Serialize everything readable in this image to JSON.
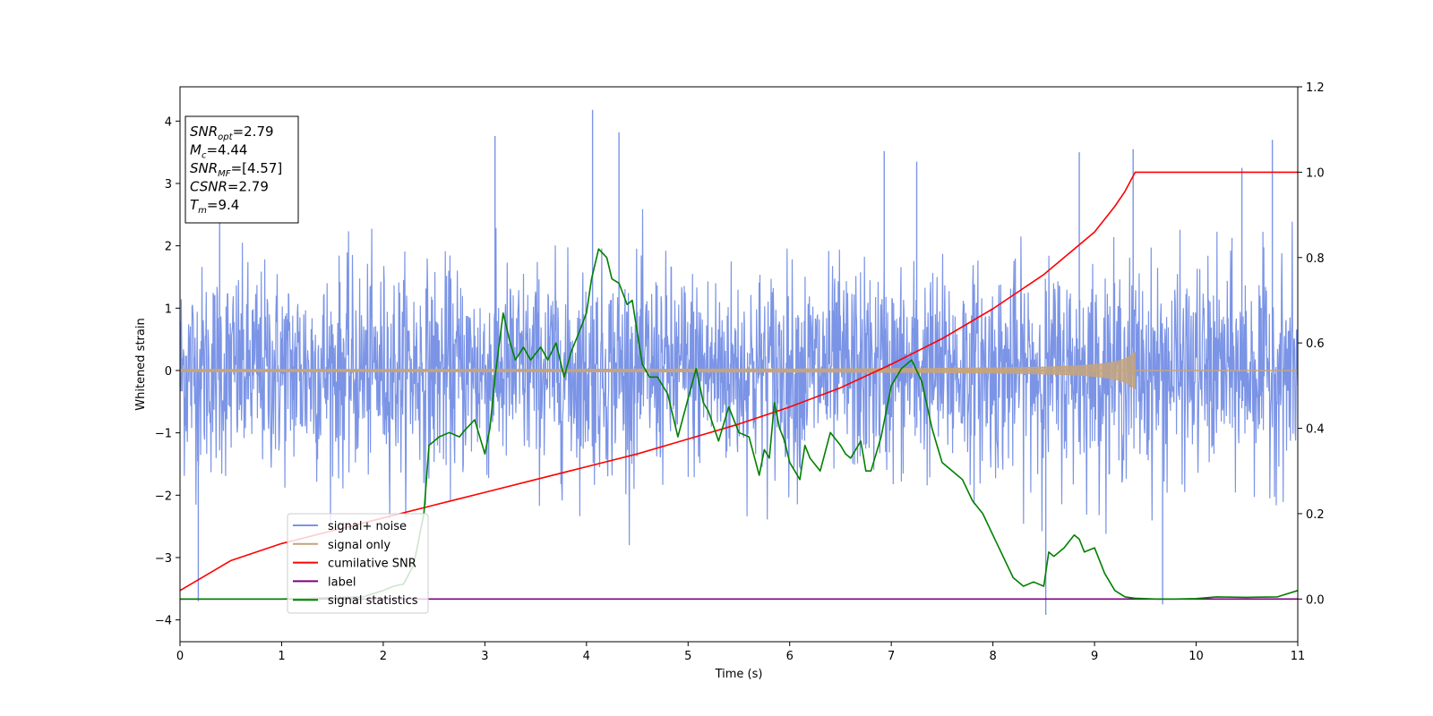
{
  "chart_data": {
    "type": "line",
    "xlabel": "Time (s)",
    "ylabel": "Whitened strain",
    "xlim": [
      0,
      11
    ],
    "ylim": [
      -4.35,
      4.55
    ],
    "y2lim": [
      -0.1,
      1.2
    ],
    "xticks": [
      0,
      1,
      2,
      3,
      4,
      5,
      6,
      7,
      8,
      9,
      10,
      11
    ],
    "yticks": [
      -4,
      -3,
      -2,
      -1,
      0,
      1,
      2,
      3,
      4
    ],
    "y2ticks": [
      "0.0",
      "0.2",
      "0.4",
      "0.6",
      "0.8",
      "1.0",
      "1.2"
    ],
    "grid": false,
    "legend_position": "lower-left",
    "info_box": {
      "lines": [
        {
          "main": "SNR",
          "sub": "opt",
          "value": "=2.79"
        },
        {
          "main": "M",
          "sub": "c",
          "value": "=4.44"
        },
        {
          "main": "SNR",
          "sub": "MF",
          "value": "=[4.57]"
        },
        {
          "main": "CSNR",
          "sub": "",
          "value": "=2.79"
        },
        {
          "main": "T",
          "sub": "m",
          "value": "=9.4"
        }
      ]
    },
    "series": [
      {
        "name": "signal+ noise",
        "color": "#7b94e6",
        "axis": "left",
        "style": "noise",
        "std": 1.0,
        "range": [
          0,
          11
        ],
        "peaks": [
          [
            0.18,
            -3.7
          ],
          [
            0.39,
            3.2
          ],
          [
            4.06,
            4.18
          ],
          [
            3.1,
            3.76
          ],
          [
            4.32,
            3.82
          ],
          [
            6.93,
            3.52
          ],
          [
            7.25,
            3.35
          ],
          [
            8.52,
            -3.92
          ],
          [
            9.67,
            -3.75
          ],
          [
            10.75,
            3.7
          ],
          [
            10.45,
            3.25
          ],
          [
            9.38,
            3.55
          ],
          [
            8.85,
            3.5
          ]
        ]
      },
      {
        "name": "signal only",
        "color": "#c4a47e",
        "axis": "left",
        "style": "chirp",
        "amplitude_end": 0.28,
        "t_merge": 9.4
      },
      {
        "name": "cumilative SNR",
        "color": "#ff0000",
        "axis": "right",
        "x": [
          0,
          0.5,
          1,
          1.5,
          2,
          2.5,
          3,
          3.5,
          4,
          4.5,
          5,
          5.5,
          6,
          6.5,
          7,
          7.5,
          8,
          8.5,
          9,
          9.2,
          9.3,
          9.4,
          9.5,
          10,
          10.5,
          11
        ],
        "values": [
          0.02,
          0.09,
          0.13,
          0.16,
          0.19,
          0.22,
          0.25,
          0.28,
          0.31,
          0.34,
          0.375,
          0.41,
          0.45,
          0.495,
          0.55,
          0.61,
          0.68,
          0.76,
          0.86,
          0.92,
          0.955,
          1.0,
          1.0,
          1.0,
          1.0,
          1.0
        ]
      },
      {
        "name": "label",
        "color": "#800080",
        "axis": "right",
        "x": [
          0,
          11
        ],
        "values": [
          0,
          0
        ]
      },
      {
        "name": "signal statistics",
        "color": "#008000",
        "axis": "right",
        "x": [
          0,
          1.0,
          1.8,
          2.0,
          2.1,
          2.2,
          2.3,
          2.4,
          2.45,
          2.55,
          2.65,
          2.75,
          2.8,
          2.9,
          3.0,
          3.05,
          3.1,
          3.18,
          3.25,
          3.3,
          3.38,
          3.45,
          3.55,
          3.62,
          3.7,
          3.78,
          3.85,
          3.92,
          4.0,
          4.05,
          4.12,
          4.2,
          4.25,
          4.32,
          4.4,
          4.45,
          4.55,
          4.62,
          4.7,
          4.8,
          4.9,
          5.0,
          5.08,
          5.15,
          5.2,
          5.3,
          5.4,
          5.5,
          5.6,
          5.7,
          5.75,
          5.8,
          5.85,
          5.9,
          5.95,
          6.0,
          6.05,
          6.1,
          6.15,
          6.2,
          6.3,
          6.4,
          6.5,
          6.55,
          6.6,
          6.7,
          6.75,
          6.8,
          6.9,
          7.0,
          7.1,
          7.2,
          7.3,
          7.4,
          7.45,
          7.5,
          7.6,
          7.65,
          7.7,
          7.8,
          7.9,
          8.0,
          8.2,
          8.3,
          8.4,
          8.5,
          8.55,
          8.6,
          8.7,
          8.8,
          8.85,
          8.9,
          9.0,
          9.05,
          9.1,
          9.2,
          9.3,
          9.4,
          9.6,
          9.8,
          10.0,
          10.2,
          10.5,
          10.8,
          11.0
        ],
        "values": [
          0,
          0.0,
          0.005,
          0.02,
          0.03,
          0.035,
          0.08,
          0.2,
          0.36,
          0.38,
          0.39,
          0.38,
          0.395,
          0.42,
          0.34,
          0.4,
          0.52,
          0.67,
          0.6,
          0.56,
          0.59,
          0.56,
          0.59,
          0.56,
          0.6,
          0.52,
          0.58,
          0.62,
          0.67,
          0.75,
          0.82,
          0.8,
          0.75,
          0.74,
          0.69,
          0.7,
          0.55,
          0.52,
          0.52,
          0.48,
          0.38,
          0.47,
          0.54,
          0.46,
          0.44,
          0.37,
          0.45,
          0.39,
          0.38,
          0.29,
          0.35,
          0.33,
          0.46,
          0.4,
          0.37,
          0.32,
          0.3,
          0.28,
          0.36,
          0.33,
          0.3,
          0.39,
          0.36,
          0.34,
          0.33,
          0.37,
          0.3,
          0.3,
          0.38,
          0.5,
          0.54,
          0.56,
          0.51,
          0.4,
          0.36,
          0.32,
          0.3,
          0.29,
          0.28,
          0.23,
          0.2,
          0.15,
          0.05,
          0.03,
          0.04,
          0.03,
          0.11,
          0.1,
          0.12,
          0.15,
          0.14,
          0.11,
          0.12,
          0.09,
          0.06,
          0.02,
          0.005,
          0.002,
          0.0,
          0.0,
          0.001,
          0.005,
          0.004,
          0.005,
          0.02
        ]
      }
    ]
  }
}
